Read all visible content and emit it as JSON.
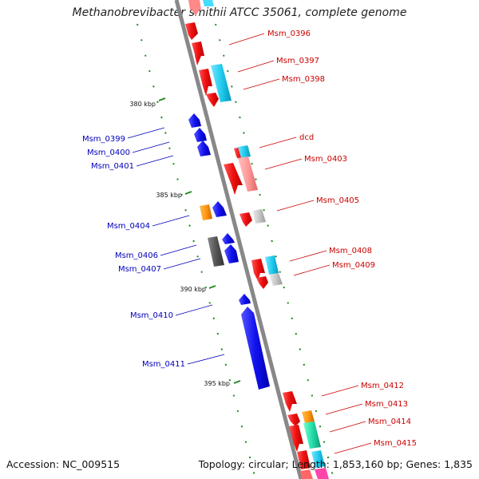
{
  "title": "Methanobrevibacter smithii ATCC 35061, complete genome",
  "footer": {
    "accession": "Accession: NC_009515",
    "topology": "Topology: circular; Length: 1,853,160 bp; Genes: 1,835"
  },
  "colors": {
    "forward_gene": "#ee1111",
    "reverse_gene": "#1111ee",
    "forward_label": "#cc0000",
    "reverse_label": "#0000bb",
    "cyan_feature": "#22ccee",
    "pink_feature": "#ff9999",
    "gray_feature": "#c8c8c8",
    "orange_feature": "#ff9911",
    "teal_feature": "#22ddaa",
    "dark_gray_feature": "#555555",
    "backbone": "#888888",
    "tick_dots": "#228822"
  },
  "ticks": [
    {
      "label": "380 kbp"
    },
    {
      "label": "385 kbp"
    },
    {
      "label": "390 kbp"
    },
    {
      "label": "395 kbp"
    }
  ],
  "forward_labels": [
    "Msm_0396",
    "Msm_0397",
    "Msm_0398",
    "dcd",
    "Msm_0403",
    "Msm_0405",
    "Msm_0408",
    "Msm_0409",
    "Msm_0412",
    "Msm_0413",
    "Msm_0414",
    "Msm_0415"
  ],
  "reverse_labels": [
    "Msm_0399",
    "Msm_0400",
    "Msm_0401",
    "Msm_0404",
    "Msm_0406",
    "Msm_0407",
    "Msm_0410",
    "Msm_0411"
  ]
}
